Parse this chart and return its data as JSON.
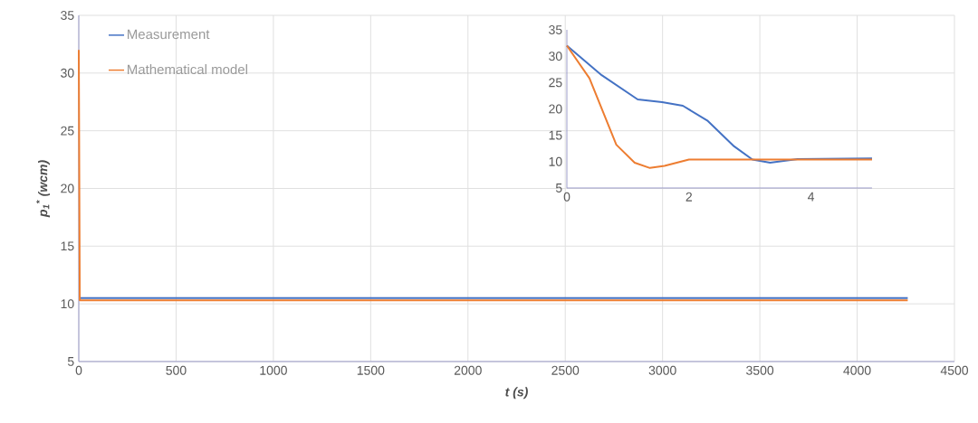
{
  "chart_data": [
    {
      "type": "line",
      "xlabel": "t (s)",
      "ylabel": "p$_{1}$$^{*}$ (wcm)",
      "xlim": [
        0,
        4500
      ],
      "ylim": [
        5,
        35
      ],
      "xticks": [
        0,
        500,
        1000,
        1500,
        2000,
        2500,
        3000,
        3500,
        4000,
        4500
      ],
      "yticks": [
        5,
        10,
        15,
        20,
        25,
        30,
        35
      ],
      "grid": true,
      "legend": "top left",
      "series": [
        {
          "name": "Measurement",
          "color": "#4472c4",
          "x": [
            5,
            4260
          ],
          "values": [
            10.5,
            10.5
          ]
        },
        {
          "name": "Mathematical model",
          "color": "#ed7d31",
          "x": [
            0,
            5,
            4260
          ],
          "values": [
            32,
            10.3,
            10.3
          ]
        }
      ]
    },
    {
      "type": "line",
      "xlim": [
        0,
        5
      ],
      "ylim": [
        5,
        35
      ],
      "xticks": [
        0,
        2,
        4
      ],
      "yticks": [
        5,
        10,
        15,
        20,
        25,
        30,
        35
      ],
      "series": [
        {
          "color": "#4472c4",
          "x": [
            0,
            0.57,
            1.16,
            1.56,
            1.9,
            2.3,
            2.74,
            3.04,
            3.33,
            3.78,
            5.0
          ],
          "values": [
            32,
            26.4,
            21.8,
            21.3,
            20.6,
            17.8,
            12.9,
            10.4,
            9.8,
            10.5,
            10.6
          ]
        },
        {
          "color": "#ed7d31",
          "x": [
            0,
            0.37,
            0.81,
            1.11,
            1.36,
            1.6,
            2.0,
            5.0
          ],
          "values": [
            32,
            25.8,
            13.2,
            9.8,
            8.8,
            9.2,
            10.4,
            10.4
          ]
        }
      ]
    }
  ]
}
